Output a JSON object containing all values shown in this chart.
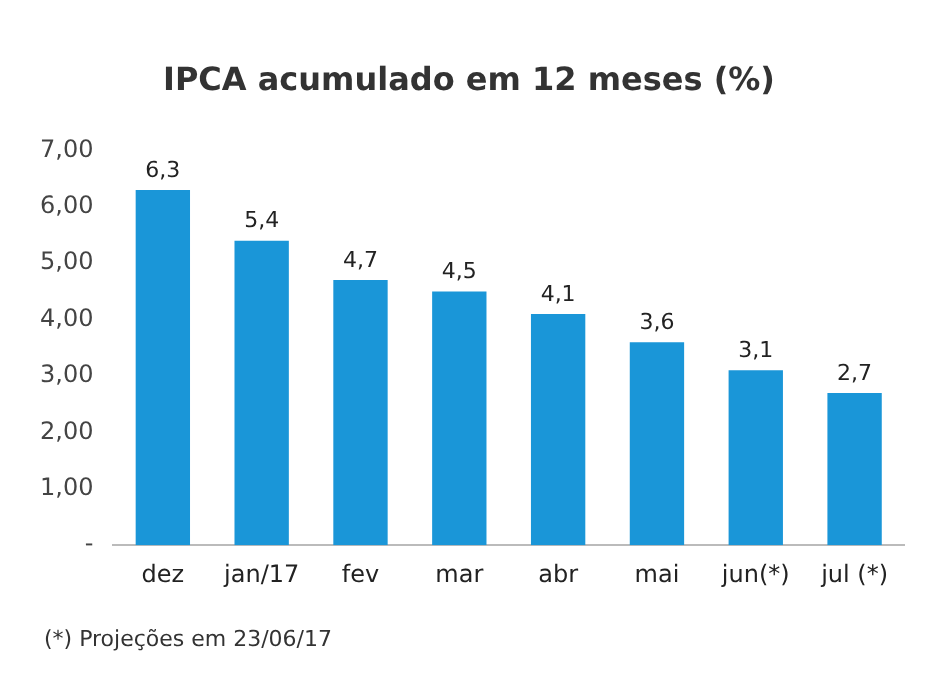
{
  "chart_data": {
    "type": "bar",
    "title": "IPCA acumulado em 12 meses (%)",
    "categories": [
      "dez",
      "jan/17",
      "fev",
      "mar",
      "abr",
      "mai",
      "jun(*)",
      "jul (*)"
    ],
    "values": [
      6.3,
      5.4,
      4.7,
      4.5,
      4.1,
      3.6,
      3.1,
      2.7
    ],
    "value_labels": [
      "6,3",
      "5,4",
      "4,7",
      "4,5",
      "4,1",
      "3,6",
      "3,1",
      "2,7"
    ],
    "color": "#1a96d8",
    "ylim": [
      0,
      7
    ],
    "yticks": [
      {
        "value": 0,
        "label": "-"
      },
      {
        "value": 1,
        "label": "1,00"
      },
      {
        "value": 2,
        "label": "2,00"
      },
      {
        "value": 3,
        "label": "3,00"
      },
      {
        "value": 4,
        "label": "4,00"
      },
      {
        "value": 5,
        "label": "5,00"
      },
      {
        "value": 6,
        "label": "6,00"
      },
      {
        "value": 7,
        "label": "7,00"
      }
    ],
    "grid": false,
    "legend": false,
    "annotations": [
      "(*) Projeções em 23/06/17"
    ]
  }
}
